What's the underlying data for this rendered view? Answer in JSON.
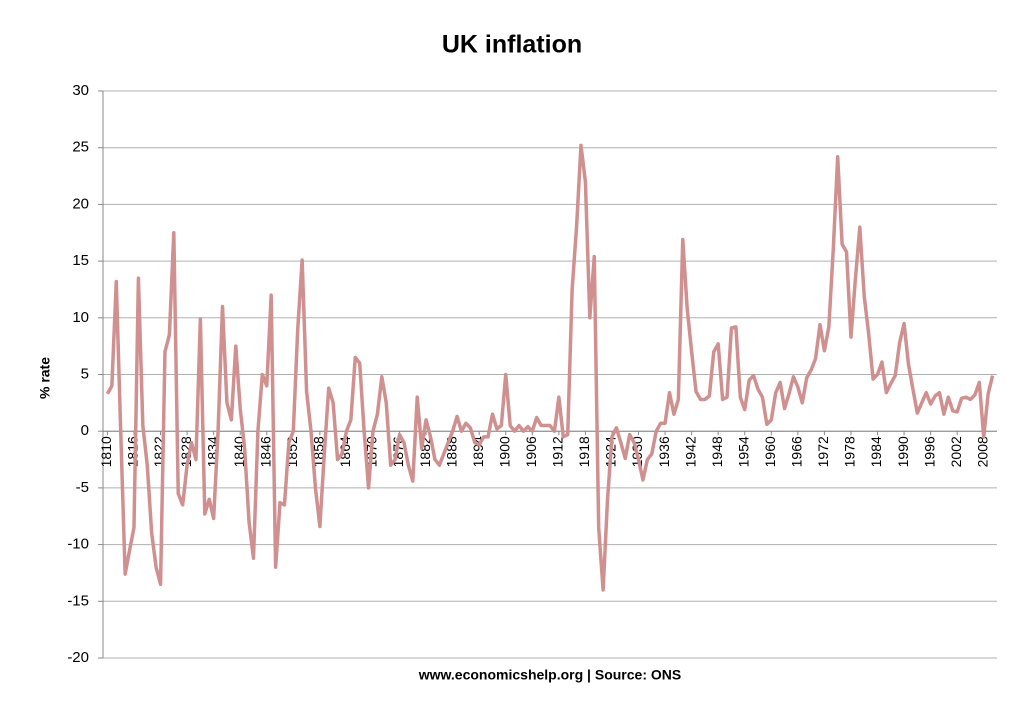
{
  "chart_data": {
    "type": "line",
    "title": "UK inflation",
    "y_label": "% rate",
    "x_label": "www.economicshelp.org | Source: ONS",
    "x": [
      1810,
      1811,
      1812,
      1813,
      1814,
      1815,
      1816,
      1817,
      1818,
      1819,
      1820,
      1821,
      1822,
      1823,
      1824,
      1825,
      1826,
      1827,
      1828,
      1829,
      1830,
      1831,
      1832,
      1833,
      1834,
      1835,
      1836,
      1837,
      1838,
      1839,
      1840,
      1841,
      1842,
      1843,
      1844,
      1845,
      1846,
      1847,
      1848,
      1849,
      1850,
      1851,
      1852,
      1853,
      1854,
      1855,
      1856,
      1857,
      1858,
      1859,
      1860,
      1861,
      1862,
      1863,
      1864,
      1865,
      1866,
      1867,
      1868,
      1869,
      1870,
      1871,
      1872,
      1873,
      1874,
      1875,
      1876,
      1877,
      1878,
      1879,
      1880,
      1881,
      1882,
      1883,
      1884,
      1885,
      1886,
      1887,
      1888,
      1889,
      1890,
      1891,
      1892,
      1893,
      1894,
      1895,
      1896,
      1897,
      1898,
      1899,
      1900,
      1901,
      1902,
      1903,
      1904,
      1905,
      1906,
      1907,
      1908,
      1909,
      1910,
      1911,
      1912,
      1913,
      1914,
      1915,
      1916,
      1917,
      1918,
      1919,
      1920,
      1921,
      1922,
      1923,
      1924,
      1925,
      1926,
      1927,
      1928,
      1929,
      1930,
      1931,
      1932,
      1933,
      1934,
      1935,
      1936,
      1937,
      1938,
      1939,
      1940,
      1941,
      1942,
      1943,
      1944,
      1945,
      1946,
      1947,
      1948,
      1949,
      1950,
      1951,
      1952,
      1953,
      1954,
      1955,
      1956,
      1957,
      1958,
      1959,
      1960,
      1961,
      1962,
      1963,
      1964,
      1965,
      1966,
      1967,
      1968,
      1969,
      1970,
      1971,
      1972,
      1973,
      1974,
      1975,
      1976,
      1977,
      1978,
      1979,
      1980,
      1981,
      1982,
      1983,
      1984,
      1985,
      1986,
      1987,
      1988,
      1989,
      1990,
      1991,
      1992,
      1993,
      1994,
      1995,
      1996,
      1997,
      1998,
      1999,
      2000,
      2001,
      2002,
      2003,
      2004,
      2005,
      2006,
      2007,
      2008,
      2009,
      2010
    ],
    "series": [
      {
        "name": "UK inflation",
        "color": "#d09090",
        "values": [
          3.3,
          4,
          13.2,
          0,
          -12.6,
          -10.5,
          -8.5,
          13.5,
          0.5,
          -3,
          -9,
          -12,
          -13.5,
          7,
          8.5,
          17.5,
          -5.5,
          -6.5,
          -3,
          -1,
          -2.5,
          9.9,
          -7.3,
          -6,
          -7.7,
          0,
          11,
          2.5,
          1,
          7.5,
          2,
          -1.5,
          -8,
          -11.2,
          0,
          5,
          4,
          12,
          -12,
          -6.3,
          -6.5,
          -1,
          0,
          9,
          15.1,
          3.5,
          0,
          -5,
          -8.4,
          -2,
          3.8,
          2.5,
          -2.5,
          -2,
          0,
          1,
          6.5,
          6,
          0,
          -5,
          0,
          1.5,
          4.8,
          2.5,
          -3,
          -2.5,
          -0.3,
          -1,
          -3,
          -4.4,
          3,
          -1.5,
          1,
          -0.5,
          -2.5,
          -3,
          -2,
          -1,
          0,
          1.3,
          0,
          0.7,
          0.3,
          -1,
          -1.2,
          -0.5,
          -0.5,
          1.5,
          0.2,
          0.5,
          5,
          0.5,
          0,
          0.5,
          0,
          0.4,
          0,
          1.2,
          0.5,
          0.5,
          0.5,
          0,
          3,
          -0.5,
          -0.3,
          12.5,
          18,
          25.2,
          22,
          10,
          15.4,
          -8.5,
          -14,
          -6,
          -0.5,
          0.3,
          -1,
          -2.4,
          -0.3,
          -1,
          -2.5,
          -4.3,
          -2.5,
          -2,
          0,
          0.7,
          0.7,
          3.4,
          1.5,
          2.8,
          16.9,
          10.8,
          7,
          3.5,
          2.8,
          2.8,
          3.1,
          7,
          7.7,
          2.8,
          3,
          9.1,
          9.2,
          3,
          1.9,
          4.5,
          4.9,
          3.7,
          3,
          0.6,
          1,
          3.4,
          4.3,
          2,
          3.3,
          4.8,
          3.9,
          2.5,
          4.7,
          5.4,
          6.4,
          9.4,
          7.1,
          9.2,
          16,
          24.2,
          16.5,
          15.8,
          8.3,
          13.4,
          18,
          11.9,
          8.6,
          4.6,
          5,
          6.1,
          3.4,
          4.2,
          4.9,
          7.8,
          9.5,
          5.9,
          3.7,
          1.6,
          2.5,
          3.4,
          2.4,
          3.1,
          3.4,
          1.5,
          3,
          1.8,
          1.7,
          2.9,
          3,
          2.8,
          3.2,
          4.3,
          -0.5,
          3.3,
          4.9
        ]
      }
    ],
    "xlim": [
      1809,
      2011
    ],
    "xticks": [
      1810,
      1816,
      1822,
      1828,
      1834,
      1840,
      1846,
      1852,
      1858,
      1864,
      1870,
      1876,
      1882,
      1888,
      1894,
      1900,
      1906,
      1912,
      1918,
      1924,
      1930,
      1936,
      1942,
      1948,
      1954,
      1960,
      1966,
      1972,
      1978,
      1984,
      1990,
      1996,
      2002,
      2008
    ],
    "ylim": [
      -20,
      30
    ],
    "yticks": [
      -20,
      -15,
      -10,
      -5,
      0,
      5,
      10,
      15,
      20,
      25,
      30
    ],
    "grid": true
  }
}
